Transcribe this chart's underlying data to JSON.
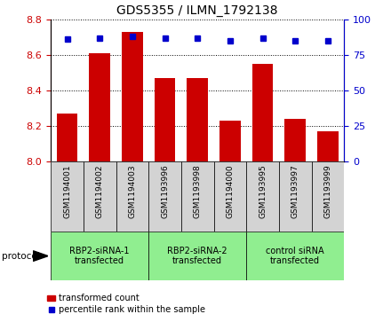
{
  "title": "GDS5355 / ILMN_1792138",
  "samples": [
    "GSM1194001",
    "GSM1194002",
    "GSM1194003",
    "GSM1193996",
    "GSM1193998",
    "GSM1194000",
    "GSM1193995",
    "GSM1193997",
    "GSM1193999"
  ],
  "bar_values": [
    8.27,
    8.61,
    8.73,
    8.47,
    8.47,
    8.23,
    8.55,
    8.24,
    8.17
  ],
  "percentile_values": [
    86,
    87,
    88,
    87,
    87,
    85,
    87,
    85,
    85
  ],
  "ylim_left": [
    8.0,
    8.8
  ],
  "ylim_right": [
    0,
    100
  ],
  "yticks_left": [
    8.0,
    8.2,
    8.4,
    8.6,
    8.8
  ],
  "yticks_right": [
    0,
    25,
    50,
    75,
    100
  ],
  "bar_color": "#CC0000",
  "dot_color": "#0000CC",
  "groups": [
    {
      "label": "RBP2-siRNA-1\ntransfected",
      "indices": [
        0,
        1,
        2
      ],
      "color": "#90EE90"
    },
    {
      "label": "RBP2-siRNA-2\ntransfected",
      "indices": [
        3,
        4,
        5
      ],
      "color": "#90EE90"
    },
    {
      "label": "control siRNA\ntransfected",
      "indices": [
        6,
        7,
        8
      ],
      "color": "#90EE90"
    }
  ],
  "protocol_label": "protocol",
  "legend_bar_label": "transformed count",
  "legend_dot_label": "percentile rank within the sample",
  "tick_label_bg": "#D3D3D3",
  "plot_bg": "#FFFFFF",
  "right_tick_color": "#0000CC",
  "left_tick_color": "#CC0000",
  "grid_color": "#000000"
}
